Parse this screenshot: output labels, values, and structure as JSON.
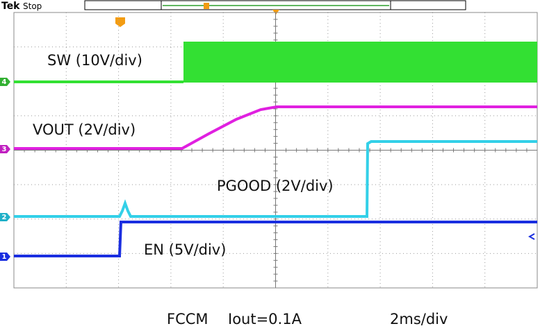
{
  "header": {
    "brand": "Tek",
    "status": "Stop"
  },
  "traces": [
    {
      "channel": "4",
      "label": "SW (10V/div)"
    },
    {
      "channel": "3",
      "label": "VOUT (2V/div)"
    },
    {
      "channel": "2",
      "label": "PGOOD (2V/div)"
    },
    {
      "channel": "1",
      "label": "EN (5V/div)"
    }
  ],
  "footer": {
    "mode": "FCCM",
    "load": "Iout=0.1A",
    "timebase": "2ms/div"
  }
}
